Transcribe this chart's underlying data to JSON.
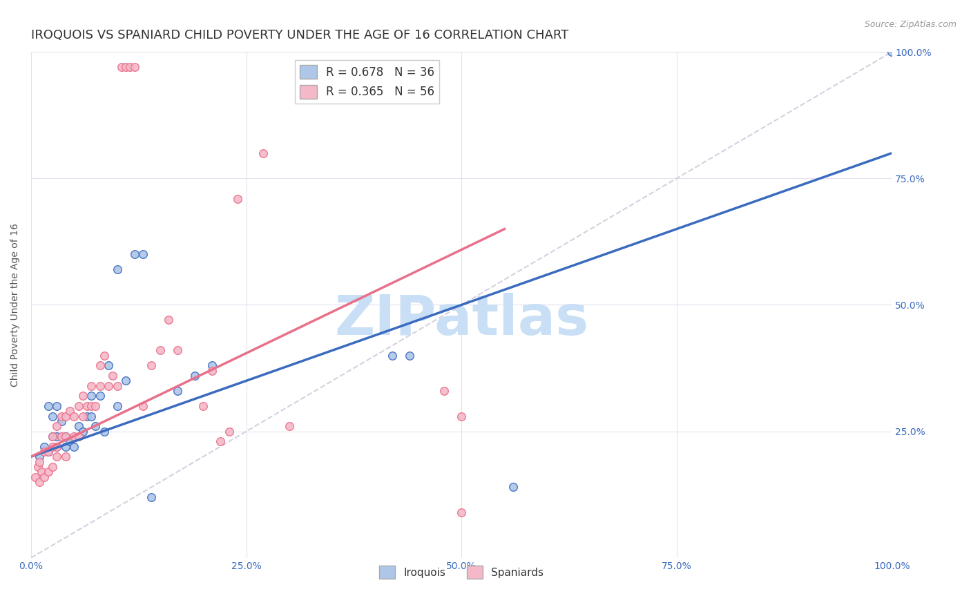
{
  "title": "IROQUOIS VS SPANIARD CHILD POVERTY UNDER THE AGE OF 16 CORRELATION CHART",
  "source": "Source: ZipAtlas.com",
  "ylabel": "Child Poverty Under the Age of 16",
  "iroquois_R": 0.678,
  "iroquois_N": 36,
  "spaniards_R": 0.365,
  "spaniards_N": 56,
  "iroquois_color": "#aec6e8",
  "spaniards_color": "#f5b8c8",
  "iroquois_line_color": "#3a6bbf",
  "spaniards_line_color": "#e8708a",
  "diagonal_color": "#d8cfe0",
  "background_color": "#ffffff",
  "grid_color": "#e8e0f0",
  "iroquois_line_x0": 0.0,
  "iroquois_line_y0": 0.2,
  "iroquois_line_x1": 1.0,
  "iroquois_line_y1": 0.8,
  "spaniards_line_x0": 0.0,
  "spaniards_line_y0": 0.2,
  "spaniards_line_x1": 0.55,
  "spaniards_line_y1": 0.65,
  "iroquois_x": [
    0.01,
    0.015,
    0.02,
    0.02,
    0.025,
    0.025,
    0.03,
    0.03,
    0.03,
    0.035,
    0.04,
    0.04,
    0.045,
    0.05,
    0.055,
    0.06,
    0.065,
    0.07,
    0.07,
    0.075,
    0.08,
    0.085,
    0.09,
    0.1,
    0.1,
    0.11,
    0.12,
    0.13,
    0.14,
    0.17,
    0.19,
    0.21,
    0.42,
    0.44,
    0.56,
    1.0
  ],
  "iroquois_y": [
    0.2,
    0.22,
    0.21,
    0.3,
    0.24,
    0.28,
    0.22,
    0.24,
    0.3,
    0.27,
    0.24,
    0.22,
    0.23,
    0.22,
    0.26,
    0.25,
    0.28,
    0.28,
    0.32,
    0.26,
    0.32,
    0.25,
    0.38,
    0.57,
    0.3,
    0.35,
    0.6,
    0.6,
    0.12,
    0.33,
    0.36,
    0.38,
    0.4,
    0.4,
    0.14,
    1.0
  ],
  "spaniards_x": [
    0.005,
    0.008,
    0.01,
    0.01,
    0.012,
    0.015,
    0.015,
    0.02,
    0.02,
    0.025,
    0.025,
    0.025,
    0.03,
    0.03,
    0.03,
    0.035,
    0.035,
    0.04,
    0.04,
    0.04,
    0.045,
    0.05,
    0.05,
    0.055,
    0.055,
    0.06,
    0.06,
    0.065,
    0.07,
    0.07,
    0.075,
    0.08,
    0.08,
    0.085,
    0.09,
    0.095,
    0.1,
    0.105,
    0.11,
    0.115,
    0.12,
    0.13,
    0.14,
    0.15,
    0.16,
    0.17,
    0.2,
    0.21,
    0.22,
    0.23,
    0.24,
    0.27,
    0.3,
    0.48,
    0.5,
    0.5
  ],
  "spaniards_y": [
    0.16,
    0.18,
    0.15,
    0.19,
    0.17,
    0.16,
    0.21,
    0.17,
    0.21,
    0.18,
    0.22,
    0.24,
    0.2,
    0.22,
    0.26,
    0.24,
    0.28,
    0.2,
    0.24,
    0.28,
    0.29,
    0.24,
    0.28,
    0.24,
    0.3,
    0.28,
    0.32,
    0.3,
    0.3,
    0.34,
    0.3,
    0.34,
    0.38,
    0.4,
    0.34,
    0.36,
    0.34,
    0.97,
    0.97,
    0.97,
    0.97,
    0.3,
    0.38,
    0.41,
    0.47,
    0.41,
    0.3,
    0.37,
    0.23,
    0.25,
    0.71,
    0.8,
    0.26,
    0.33,
    0.09,
    0.28
  ],
  "xlim": [
    0.0,
    1.0
  ],
  "ylim": [
    0.0,
    1.0
  ],
  "xticks": [
    0.0,
    0.25,
    0.5,
    0.75,
    1.0
  ],
  "yticks": [
    0.25,
    0.5,
    0.75,
    1.0
  ],
  "xticklabels": [
    "0.0%",
    "25.0%",
    "50.0%",
    "75.0%",
    "100.0%"
  ],
  "right_yticklabels": [
    "25.0%",
    "50.0%",
    "75.0%",
    "100.0%"
  ],
  "title_fontsize": 13,
  "axis_label_fontsize": 10,
  "tick_fontsize": 10,
  "legend_fontsize": 12,
  "marker_size": 70,
  "watermark_text": "ZIPatlas",
  "watermark_color": "#c8dff5",
  "watermark_fontsize": 58
}
